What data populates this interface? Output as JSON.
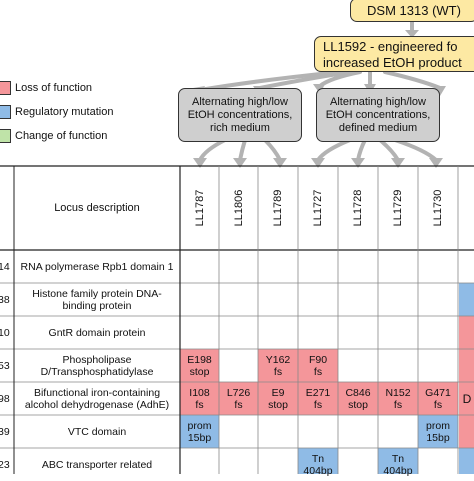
{
  "nodes": {
    "wild_type": "DSM 1313 (WT)",
    "engineered_line1": "LL1592 - engineered fo",
    "engineered_line2": "increased EtOH product",
    "rich_line1": "Alternating high/low",
    "rich_line2": "EtOH concentrations,",
    "rich_line3": "rich medium",
    "defined_line1": "Alternating high/low",
    "defined_line2": "EtOH concentrations,",
    "defined_line3": "defined medium"
  },
  "legend": [
    {
      "label": "Loss of function",
      "color": "#f4969a"
    },
    {
      "label": "Regulatory mutation",
      "color": "#8fbbe6"
    },
    {
      "label": "Change of function",
      "color": "#bfe3a8"
    }
  ],
  "table": {
    "locus_header": "Locus description",
    "strains": [
      "LL1787",
      "LL1806",
      "LL1789",
      "LL1727",
      "LL1728",
      "LL1729",
      "LL1730"
    ],
    "rows": [
      {
        "id": "14",
        "desc": [
          "RNA polymerase Rpb1 domain 1"
        ]
      },
      {
        "id": "38",
        "desc": [
          "Histone family protein DNA-",
          "binding protein"
        ]
      },
      {
        "id": "10",
        "desc": [
          "GntR domain protein"
        ]
      },
      {
        "id": "53",
        "desc": [
          "Phospholipase",
          "D/Transphosphatidylase"
        ]
      },
      {
        "id": "98",
        "desc": [
          "Bifunctional iron-containing",
          "alcohol dehydrogenase (AdhE)"
        ]
      },
      {
        "id": "39",
        "desc": [
          "VTC domain"
        ]
      },
      {
        "id": "23",
        "desc": [
          "ABC transporter related"
        ]
      }
    ],
    "mutations": [
      {
        "row": 3,
        "col": 0,
        "type": "loss",
        "text": [
          "E198",
          "stop"
        ]
      },
      {
        "row": 3,
        "col": 2,
        "type": "loss",
        "text": [
          "Y162",
          "fs"
        ]
      },
      {
        "row": 3,
        "col": 3,
        "type": "loss",
        "text": [
          "F90",
          "fs"
        ]
      },
      {
        "row": 4,
        "col": 0,
        "type": "loss",
        "text": [
          "I108",
          "fs"
        ]
      },
      {
        "row": 4,
        "col": 1,
        "type": "loss",
        "text": [
          "L726",
          "fs"
        ]
      },
      {
        "row": 4,
        "col": 2,
        "type": "loss",
        "text": [
          "E9",
          "stop"
        ]
      },
      {
        "row": 4,
        "col": 3,
        "type": "loss",
        "text": [
          "E271",
          "fs"
        ]
      },
      {
        "row": 4,
        "col": 4,
        "type": "loss",
        "text": [
          "C846",
          "stop"
        ]
      },
      {
        "row": 4,
        "col": 5,
        "type": "loss",
        "text": [
          "N152",
          "fs"
        ]
      },
      {
        "row": 4,
        "col": 6,
        "type": "loss",
        "text": [
          "G471",
          "fs"
        ]
      },
      {
        "row": 5,
        "col": 0,
        "type": "reg",
        "text": [
          "prom",
          "15bp"
        ]
      },
      {
        "row": 5,
        "col": 6,
        "type": "reg",
        "text": [
          "prom",
          "15bp"
        ]
      },
      {
        "row": 6,
        "col": 3,
        "type": "reg",
        "text": [
          "Tn",
          "404bp"
        ]
      },
      {
        "row": 6,
        "col": 5,
        "type": "reg",
        "text": [
          "Tn",
          "404bp"
        ]
      }
    ],
    "edge_cells": [
      {
        "row": 1,
        "type": "reg",
        "text": ""
      },
      {
        "row": 2,
        "type": "loss",
        "text": ""
      },
      {
        "row": 3,
        "type": "loss",
        "text": ""
      },
      {
        "row": 4,
        "type": "loss",
        "text": "D"
      },
      {
        "row": 5,
        "type": "loss",
        "text": ""
      },
      {
        "row": 6,
        "type": "reg",
        "text": ""
      }
    ]
  },
  "colors": {
    "loss": "#f4969a",
    "reg": "#8fbbe6",
    "arrow": "#b3b3b3"
  }
}
